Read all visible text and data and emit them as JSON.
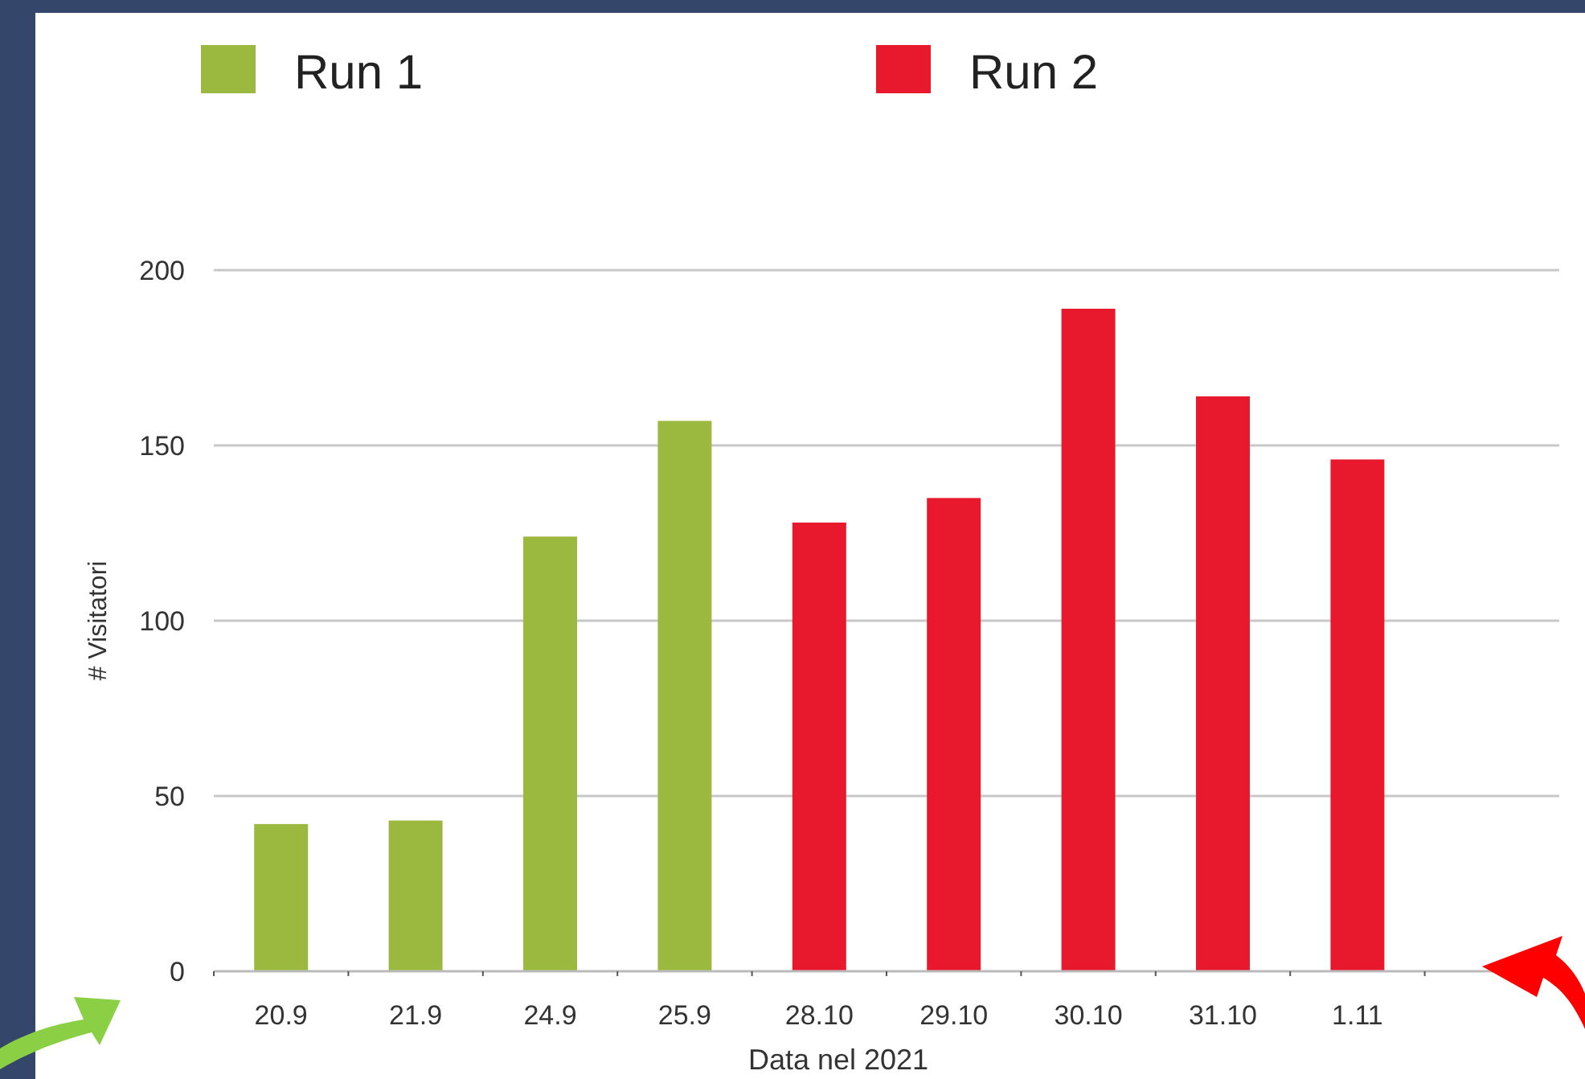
{
  "chart_data": {
    "type": "bar",
    "xlabel": "Data nel 2021",
    "ylabel": "# Visitatori",
    "categories": [
      "20.9",
      "21.9",
      "24.9",
      "25.9",
      "28.10",
      "29.10",
      "30.10",
      "31.10",
      "1.11",
      null
    ],
    "series": [
      {
        "name": "Run 1",
        "color": "#9bb83f",
        "values": [
          42,
          43,
          124,
          157,
          null,
          null,
          null,
          null,
          null,
          null
        ]
      },
      {
        "name": "Run 2",
        "color": "#e8192c",
        "values": [
          null,
          null,
          null,
          null,
          128,
          135,
          189,
          164,
          146,
          null
        ]
      }
    ],
    "ylim": [
      0,
      200
    ],
    "yticks": [
      0,
      50,
      100,
      150,
      200
    ],
    "grid": "y",
    "legend": "top"
  }
}
